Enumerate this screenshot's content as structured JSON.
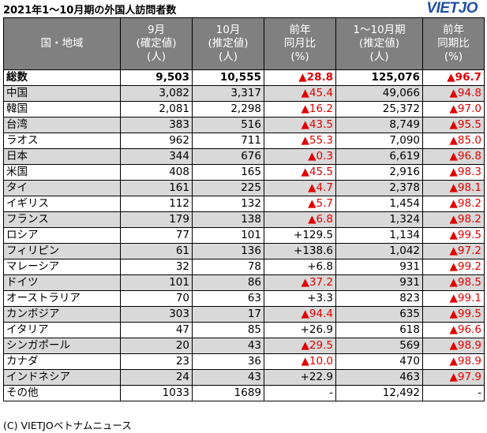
{
  "title": "2021年1～10月期の外国人訪問者数",
  "logo": "VIETJO",
  "footer": "(C) VIETJOベトナムニュース",
  "colors": {
    "header_bg": "#808080",
    "row_shade": "#d9d9d9",
    "increase": "#e00000",
    "logo": "#1f4fa3"
  },
  "chart_data": {
    "type": "table",
    "columns": [
      {
        "lines": [
          "国・地域"
        ]
      },
      {
        "lines": [
          "9月",
          "(確定値)",
          "(人)"
        ]
      },
      {
        "lines": [
          "10月",
          "(推定値)",
          "(人)"
        ]
      },
      {
        "lines": [
          "前年",
          "同月比",
          "(%)"
        ]
      },
      {
        "lines": [
          "1～10月期",
          "(推定値)",
          "(人)"
        ]
      },
      {
        "lines": [
          "前年",
          "同期比",
          "(%)"
        ]
      }
    ],
    "rows": [
      {
        "name": "総数",
        "sep": "9,503",
        "oct": "10,555",
        "mom": "▲28.8",
        "ytd": "125,076",
        "yoy": "▲96.7"
      },
      {
        "name": "中国",
        "sep": "3,082",
        "oct": "3,317",
        "mom": "▲45.4",
        "ytd": "49,066",
        "yoy": "▲94.8"
      },
      {
        "name": "韓国",
        "sep": "2,081",
        "oct": "2,298",
        "mom": "▲16.2",
        "ytd": "25,372",
        "yoy": "▲97.0"
      },
      {
        "name": "台湾",
        "sep": "383",
        "oct": "516",
        "mom": "▲43.5",
        "ytd": "8,749",
        "yoy": "▲95.5"
      },
      {
        "name": "ラオス",
        "sep": "962",
        "oct": "711",
        "mom": "▲55.3",
        "ytd": "7,090",
        "yoy": "▲85.0"
      },
      {
        "name": "日本",
        "sep": "344",
        "oct": "676",
        "mom": "▲0.3",
        "ytd": "6,619",
        "yoy": "▲96.8"
      },
      {
        "name": "米国",
        "sep": "408",
        "oct": "165",
        "mom": "▲45.5",
        "ytd": "2,916",
        "yoy": "▲98.3"
      },
      {
        "name": "タイ",
        "sep": "161",
        "oct": "225",
        "mom": "▲4.7",
        "ytd": "2,378",
        "yoy": "▲98.1"
      },
      {
        "name": "イギリス",
        "sep": "112",
        "oct": "132",
        "mom": "▲5.7",
        "ytd": "1,454",
        "yoy": "▲98.2"
      },
      {
        "name": "フランス",
        "sep": "179",
        "oct": "138",
        "mom": "▲6.8",
        "ytd": "1,324",
        "yoy": "▲98.2"
      },
      {
        "name": "ロシア",
        "sep": "77",
        "oct": "101",
        "mom": "+129.5",
        "ytd": "1,134",
        "yoy": "▲99.5"
      },
      {
        "name": "フィリピン",
        "sep": "61",
        "oct": "136",
        "mom": "+138.6",
        "ytd": "1,042",
        "yoy": "▲97.2"
      },
      {
        "name": "マレーシア",
        "sep": "32",
        "oct": "78",
        "mom": "+6.8",
        "ytd": "931",
        "yoy": "▲99.2"
      },
      {
        "name": "ドイツ",
        "sep": "101",
        "oct": "86",
        "mom": "▲37.2",
        "ytd": "931",
        "yoy": "▲98.5"
      },
      {
        "name": "オーストラリア",
        "sep": "70",
        "oct": "63",
        "mom": "+3.3",
        "ytd": "823",
        "yoy": "▲99.1"
      },
      {
        "name": "カンボジア",
        "sep": "303",
        "oct": "17",
        "mom": "▲94.4",
        "ytd": "635",
        "yoy": "▲99.5"
      },
      {
        "name": "イタリア",
        "sep": "47",
        "oct": "85",
        "mom": "+26.9",
        "ytd": "618",
        "yoy": "▲96.6"
      },
      {
        "name": "シンガポール",
        "sep": "20",
        "oct": "43",
        "mom": "▲29.5",
        "ytd": "569",
        "yoy": "▲98.9"
      },
      {
        "name": "カナダ",
        "sep": "23",
        "oct": "36",
        "mom": "▲10.0",
        "ytd": "470",
        "yoy": "▲98.9"
      },
      {
        "name": "インドネシア",
        "sep": "24",
        "oct": "43",
        "mom": "+22.9",
        "ytd": "463",
        "yoy": "▲97.9"
      },
      {
        "name": "その他",
        "sep": "1033",
        "oct": "1689",
        "mom": "-",
        "ytd": "12,492",
        "yoy": "-"
      }
    ]
  }
}
